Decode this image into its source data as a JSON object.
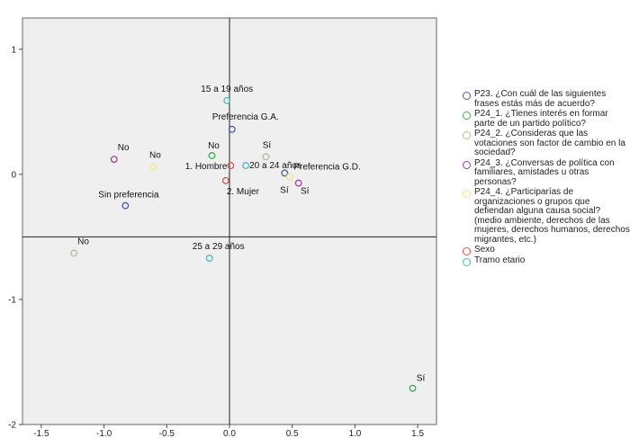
{
  "chart_data": {
    "type": "scatter",
    "xlim": [
      -1.65,
      1.65
    ],
    "ylim": [
      -2,
      1.25
    ],
    "xticks": [
      {
        "value": -1.5,
        "label": "-1.5"
      },
      {
        "value": -1.0,
        "label": "-1.0"
      },
      {
        "value": -0.5,
        "label": "-0.5"
      },
      {
        "value": 0.0,
        "label": "0.0"
      },
      {
        "value": 0.5,
        "label": "0.5"
      },
      {
        "value": 1.0,
        "label": "1.0"
      },
      {
        "value": 1.5,
        "label": "1.5"
      }
    ],
    "yticks": [
      {
        "value": 1,
        "label": "1"
      },
      {
        "value": 0,
        "label": "0"
      },
      {
        "value": -1,
        "label": "-1"
      },
      {
        "value": -2,
        "label": "-2"
      }
    ],
    "reference_lines": {
      "x": 0,
      "y": -0.5
    },
    "legend_position": "right",
    "series": [
      {
        "name": "P23. ¿Con cuál de las siguientes frases estás más de acuerdo?",
        "color": "#4a5aa8",
        "points": [
          {
            "label": "Preferencia G.A.",
            "x": 0.02,
            "y": 0.36
          },
          {
            "label": "Preferencia G.D.",
            "x": 0.44,
            "y": 0.01
          },
          {
            "label": "Sin preferencia",
            "x": -0.83,
            "y": -0.25
          }
        ]
      },
      {
        "name": "P24_1. ¿Tienes interés en formar parte de un partido político?",
        "color": "#3fa84c",
        "points": [
          {
            "label": "No",
            "x": -0.14,
            "y": 0.15
          },
          {
            "label": "Sí",
            "x": 1.46,
            "y": -1.71
          }
        ]
      },
      {
        "name": "P24_2. ¿Consideras que las votaciones son factor de cambio en la sociedad?",
        "color": "#b8b89a",
        "points": [
          {
            "label": "No",
            "x": -1.24,
            "y": -0.63
          },
          {
            "label": "Sí",
            "x": 0.29,
            "y": 0.14
          }
        ]
      },
      {
        "name": "P24_3. ¿Conversas de política con familiares, amistades u otras personas?",
        "color": "#9a3fa0",
        "points": [
          {
            "label": "No",
            "x": -0.92,
            "y": 0.12
          },
          {
            "label": "Sí",
            "x": 0.55,
            "y": -0.07
          }
        ]
      },
      {
        "name": "P24_4. ¿Participarías de organizaciones o grupos que defiendan alguna causa social? (medio ambiente, derechos de las mujeres, derechos humanos, derechos migrantes, etc.)",
        "color": "#ece68a",
        "points": [
          {
            "label": "No",
            "x": -0.61,
            "y": 0.06
          },
          {
            "label": "Sí",
            "x": 0.48,
            "y": -0.02
          }
        ]
      },
      {
        "name": "Sexo",
        "color": "#e0504a",
        "points": [
          {
            "label": "1. Hombre",
            "x": 0.01,
            "y": 0.07
          },
          {
            "label": "2. Mujer",
            "x": -0.03,
            "y": -0.05
          }
        ]
      },
      {
        "name": "Tramo etario",
        "color": "#4bb8c0",
        "points": [
          {
            "label": "15 a 19 años",
            "x": -0.02,
            "y": 0.59
          },
          {
            "label": "20 a 24 años",
            "x": 0.13,
            "y": 0.07
          },
          {
            "label": "25 a 29 años",
            "x": -0.16,
            "y": -0.67
          }
        ]
      }
    ]
  }
}
